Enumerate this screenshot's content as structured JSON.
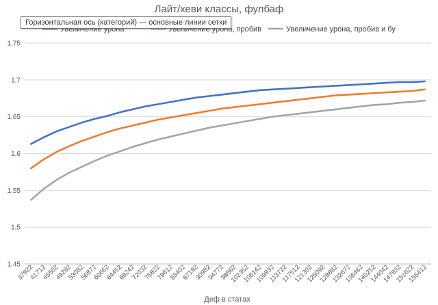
{
  "chart_data": {
    "type": "line",
    "title": "Лайт/хеви классы, фулбаф",
    "xlabel": "Деф в статах",
    "ylabel": "",
    "ylim": [
      1.45,
      1.75
    ],
    "yticks": [
      "1,45",
      "1,5",
      "1,55",
      "1,6",
      "1,65",
      "1,7",
      "1,75"
    ],
    "grid": true,
    "legend_position": "top",
    "categories": [
      "37922",
      "41712",
      "45502",
      "49292",
      "53082",
      "56872",
      "60662",
      "64452",
      "68242",
      "72032",
      "75822",
      "79612",
      "83402",
      "87192",
      "90982",
      "94772",
      "98562",
      "102352",
      "106142",
      "109932",
      "113722",
      "117512",
      "121302",
      "125092",
      "128882",
      "132672",
      "136462",
      "140252",
      "144042",
      "147832",
      "151622",
      "155412"
    ],
    "series": [
      {
        "name": "Увеличение урона",
        "color": "#4472C4",
        "values": [
          1.613,
          1.622,
          1.63,
          1.636,
          1.642,
          1.647,
          1.651,
          1.656,
          1.66,
          1.664,
          1.667,
          1.67,
          1.673,
          1.676,
          1.678,
          1.68,
          1.682,
          1.684,
          1.686,
          1.687,
          1.688,
          1.689,
          1.69,
          1.691,
          1.692,
          1.693,
          1.694,
          1.695,
          1.696,
          1.697,
          1.697,
          1.698
        ]
      },
      {
        "name": "Увеличение урона, пробив",
        "color": "#ED7D31",
        "values": [
          1.58,
          1.592,
          1.602,
          1.61,
          1.617,
          1.623,
          1.629,
          1.634,
          1.638,
          1.642,
          1.646,
          1.649,
          1.652,
          1.655,
          1.658,
          1.661,
          1.663,
          1.665,
          1.667,
          1.669,
          1.671,
          1.673,
          1.675,
          1.677,
          1.679,
          1.68,
          1.681,
          1.682,
          1.683,
          1.684,
          1.685,
          1.687
        ]
      },
      {
        "name": "Увеличение урона, пробив и бу",
        "color": "#A5A5A5",
        "values": [
          1.537,
          1.552,
          1.564,
          1.574,
          1.582,
          1.59,
          1.597,
          1.603,
          1.609,
          1.614,
          1.619,
          1.623,
          1.627,
          1.631,
          1.635,
          1.638,
          1.641,
          1.644,
          1.647,
          1.65,
          1.652,
          1.654,
          1.656,
          1.658,
          1.66,
          1.662,
          1.664,
          1.666,
          1.667,
          1.669,
          1.67,
          1.672
        ]
      }
    ]
  },
  "tooltip": {
    "text": "Горизонтальная ось (категорий) — основные линии сетки"
  }
}
